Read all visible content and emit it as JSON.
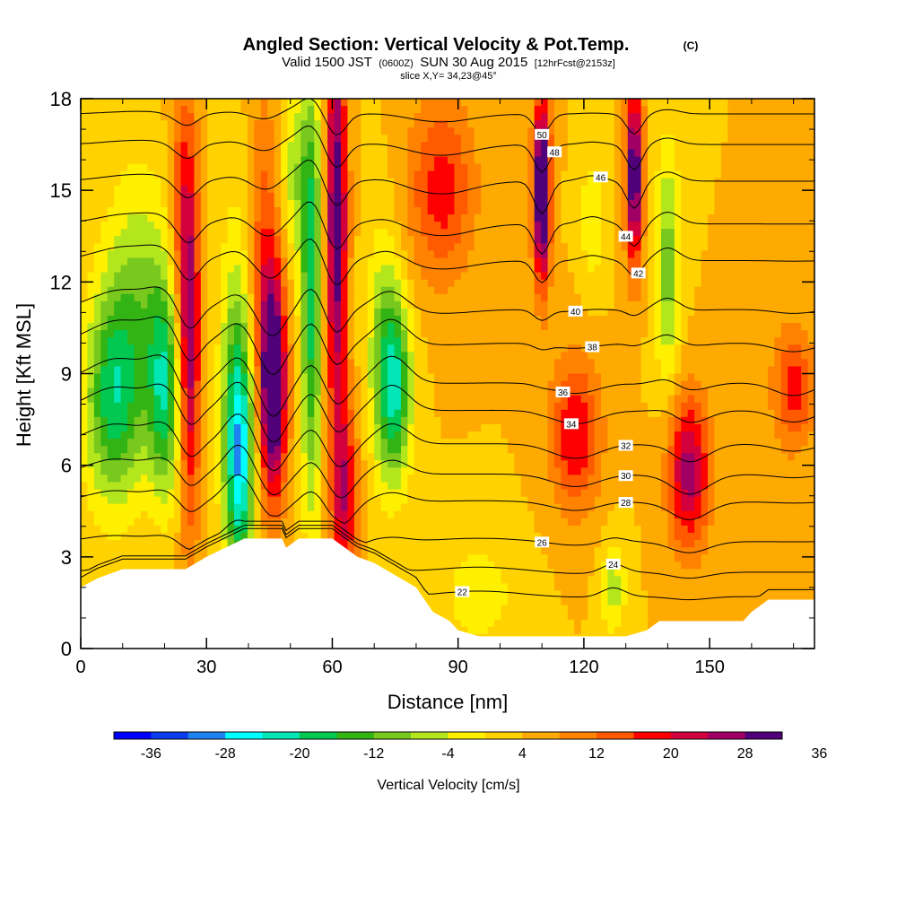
{
  "chart_data": {
    "type": "heatmap",
    "title": "Angled Section: Vertical Velocity & Pot.Temp.",
    "title_mark": "(C)",
    "subtitle_prefix": "Valid 1500 JST",
    "subtitle_utc": "(0600Z)",
    "subtitle_date": "SUN 30 Aug 2015",
    "subtitle_fcst": "[12hrFcst@2153z]",
    "slice_label": "slice X,Y= 34,23@45°",
    "xlabel": "Distance [nm]",
    "ylabel": "Height [Kft MSL]",
    "xlim": [
      0,
      175
    ],
    "ylim": [
      0,
      18
    ],
    "x_ticks": [
      "0",
      "30",
      "60",
      "90",
      "120",
      "150"
    ],
    "x_tick_values": [
      0,
      30,
      60,
      90,
      120,
      150
    ],
    "y_ticks": [
      "0",
      "3",
      "6",
      "9",
      "12",
      "15",
      "18"
    ],
    "y_tick_values": [
      0,
      3,
      6,
      9,
      12,
      15,
      18
    ],
    "colorbar": {
      "label": "Vertical Velocity [cm/s]",
      "tick_labels": [
        "-36",
        "-28",
        "-20",
        "-12",
        "-4",
        "4",
        "12",
        "20",
        "28",
        "36"
      ],
      "colors": [
        "#0000ff",
        "#0a3cf0",
        "#1e82f0",
        "#00ffff",
        "#00e6b4",
        "#00c850",
        "#32b414",
        "#78c81e",
        "#b4e61e",
        "#fff000",
        "#ffd200",
        "#ffaa00",
        "#ff8200",
        "#ff5a00",
        "#ff0000",
        "#d2003c",
        "#a00064",
        "#500078"
      ]
    },
    "velocity_cells": [
      {
        "x": 8,
        "z": 8.2,
        "sx": 7,
        "sz": 3.5,
        "w": -22
      },
      {
        "x": 20,
        "z": 8.5,
        "sx": 4,
        "sz": 3.5,
        "w": -22
      },
      {
        "x": 14,
        "z": 12,
        "sx": 8,
        "sz": 4,
        "w": -10
      },
      {
        "x": 24,
        "z": 14,
        "sx": 3,
        "sz": 5,
        "w": 10
      },
      {
        "x": 26,
        "z": 10,
        "sx": 2.5,
        "sz": 6,
        "w": 22
      },
      {
        "x": 38,
        "z": 6.2,
        "sx": 3.5,
        "sz": 4,
        "w": -26
      },
      {
        "x": 37,
        "z": 9,
        "sx": 4,
        "sz": 6,
        "w": -10
      },
      {
        "x": 46,
        "z": 8.5,
        "sx": 3,
        "sz": 3.5,
        "w": 30
      },
      {
        "x": 44,
        "z": 12,
        "sx": 4,
        "sz": 6,
        "w": 12
      },
      {
        "x": 55,
        "z": 11.5,
        "sx": 2.5,
        "sz": 7,
        "w": -22
      },
      {
        "x": 51,
        "z": 15.5,
        "sx": 4,
        "sz": 3,
        "w": -10
      },
      {
        "x": 61,
        "z": 14,
        "sx": 2.5,
        "sz": 7,
        "w": 28
      },
      {
        "x": 63,
        "z": 5,
        "sx": 3,
        "sz": 3,
        "w": 18
      },
      {
        "x": 75,
        "z": 8.5,
        "sx": 4,
        "sz": 3,
        "w": -22
      },
      {
        "x": 72,
        "z": 10,
        "sx": 4,
        "sz": 4,
        "w": -10
      },
      {
        "x": 86,
        "z": 15,
        "sx": 8,
        "sz": 3,
        "w": 14
      },
      {
        "x": 110,
        "z": 15,
        "sx": 2,
        "sz": 3,
        "w": 36
      },
      {
        "x": 132,
        "z": 15.5,
        "sx": 2,
        "sz": 3,
        "w": 30
      },
      {
        "x": 122,
        "z": 14,
        "sx": 3,
        "sz": 2,
        "w": -8
      },
      {
        "x": 140,
        "z": 12.5,
        "sx": 3,
        "sz": 4,
        "w": -14
      },
      {
        "x": 145,
        "z": 5.8,
        "sx": 5,
        "sz": 2.5,
        "w": 22
      },
      {
        "x": 118,
        "z": 7,
        "sx": 6,
        "sz": 2.5,
        "w": 16
      },
      {
        "x": 170,
        "z": 8.5,
        "sx": 5,
        "sz": 2,
        "w": 14
      },
      {
        "x": 127,
        "z": 2,
        "sx": 3,
        "sz": 1.5,
        "w": -10
      },
      {
        "x": 95,
        "z": 1.8,
        "sx": 10,
        "sz": 2,
        "w": -6
      }
    ],
    "terrain": {
      "x": [
        0,
        4,
        10,
        25,
        30,
        36,
        39,
        48,
        49,
        52,
        60,
        66,
        70,
        75,
        80,
        84,
        88,
        90,
        95,
        100,
        110,
        120,
        130,
        135,
        138,
        150,
        158,
        160,
        164,
        175
      ],
      "z": [
        2.0,
        2.3,
        2.6,
        2.6,
        3.0,
        3.4,
        3.6,
        3.6,
        3.3,
        3.6,
        3.6,
        3.0,
        2.8,
        2.4,
        2.0,
        1.2,
        0.9,
        0.6,
        0.4,
        0.4,
        0.4,
        0.4,
        0.4,
        0.6,
        0.9,
        0.9,
        0.9,
        1.2,
        1.6,
        1.6
      ]
    },
    "theta_contours": [
      {
        "value": 22,
        "base": 1.7,
        "label_x": 91
      },
      {
        "value": 24,
        "base": 2.5,
        "label_x": 127
      },
      {
        "value": 26,
        "base": 3.5,
        "label_x": 110
      },
      {
        "value": 28,
        "base": 4.8,
        "label_x": 130
      },
      {
        "value": 30,
        "base": 5.7,
        "label_x": 130
      },
      {
        "value": 32,
        "base": 6.7,
        "label_x": 130
      },
      {
        "value": 34,
        "base": 7.8,
        "label_x": 117
      },
      {
        "value": 36,
        "base": 8.7,
        "label_x": 115
      },
      {
        "value": 38,
        "base": 10.0,
        "label_x": 122
      },
      {
        "value": 40,
        "base": 11.1,
        "label_x": 118
      },
      {
        "value": 42,
        "base": 12.7,
        "label_x": 133
      },
      {
        "value": 44,
        "base": 13.9,
        "label_x": 130
      },
      {
        "value": 46,
        "base": 15.3,
        "label_x": 124
      },
      {
        "value": 48,
        "base": 16.5,
        "label_x": 113
      },
      {
        "value": 50,
        "base": 17.5,
        "label_x": 110
      }
    ]
  }
}
